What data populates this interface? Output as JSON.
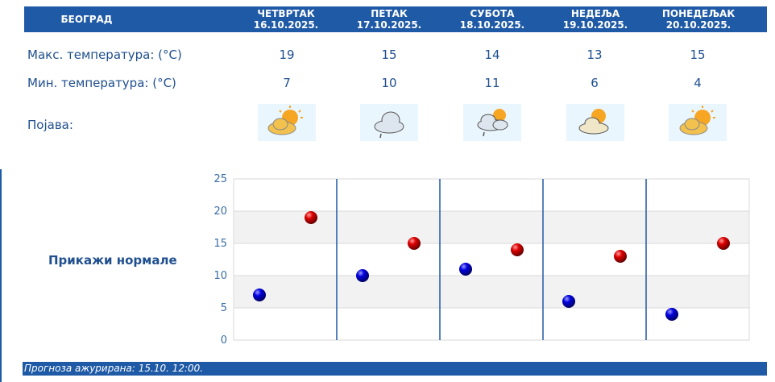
{
  "header": {
    "city": "БЕОГРАД",
    "days": [
      {
        "name": "ЧЕТВРТАК",
        "date": "16.10.2025."
      },
      {
        "name": "ПЕТАК",
        "date": "17.10.2025."
      },
      {
        "name": "СУБОТА",
        "date": "18.10.2025."
      },
      {
        "name": "НЕДЕЉА",
        "date": "19.10.2025."
      },
      {
        "name": "ПОНЕДЕЉАК",
        "date": "20.10.2025."
      }
    ]
  },
  "rows": {
    "max_label": "Макс. температура: (°C)",
    "min_label": "Мин. температура: (°C)",
    "weather_label": "Појава:",
    "max": [
      "19",
      "15",
      "14",
      "13",
      "15"
    ],
    "min": [
      "7",
      "10",
      "11",
      "6",
      "4"
    ],
    "icons": [
      "sun-behind-cloud-icon",
      "rain-cloud-icon",
      "sun-cloud-rain-icon",
      "sun-behind-cloud-icon",
      "sun-behind-cloud-icon"
    ]
  },
  "normals_link": "Прикажи нормале",
  "colors": {
    "accent": "#1f5aa6",
    "max_point": "#cc0000",
    "min_point": "#0000cc"
  },
  "chart_data": {
    "type": "scatter",
    "x": [
      "16.10.2025.",
      "17.10.2025.",
      "18.10.2025.",
      "19.10.2025.",
      "20.10.2025."
    ],
    "series": [
      {
        "values": [
          7,
          10,
          11,
          6,
          4
        ]
      },
      {
        "values": [
          19,
          15,
          14,
          13,
          15
        ]
      }
    ],
    "yticks": [
      "0",
      "5",
      "10",
      "15",
      "20",
      "25"
    ],
    "ylim": [
      0,
      25
    ],
    "grid": true
  },
  "footer": "Прогноза ажурирана:  15.10. 12:00."
}
